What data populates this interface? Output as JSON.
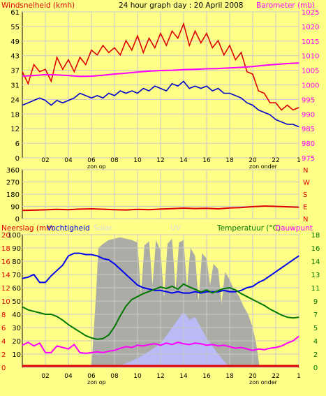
{
  "colors": {
    "background": "#ffff88",
    "panel_border": "#000000",
    "grid": "#c8c8c8",
    "wind": "#dd0000",
    "gust": "#dd0000",
    "wind_avg": "#0000cc",
    "barometer": "#ff00ff",
    "direction": "#dd0000",
    "rain": "#dd0000",
    "humidity": "#0000ee",
    "solar": "#a8a8a8",
    "uv": "#bbbbff",
    "temperature": "#007700",
    "dewpoint": "#ff00ff",
    "label_left": "#dd0000",
    "label_right": "#ff00ff",
    "label_bottom_right": "#007700",
    "tick_text": "#000000"
  },
  "chart_data": [
    {
      "type": "line",
      "title": "24 hour graph day : 20 April 2008",
      "left_label": "Windsnelheid (kmh)",
      "right_label": "Barometer (mb)",
      "x_ticks": [
        "02",
        "04",
        "06",
        "08",
        "10",
        "12",
        "14",
        "16",
        "18",
        "20",
        "22",
        "1"
      ],
      "x_markers": [
        "zon op",
        "zon onder"
      ],
      "left_ticks": [
        "0",
        "6",
        "12",
        "18",
        "24",
        "31",
        "37",
        "43",
        "49",
        "55",
        "61"
      ],
      "right_ticks": [
        "975",
        "980",
        "985",
        "990",
        "995",
        "1000",
        "1005",
        "1010",
        "1015",
        "1020",
        "1025"
      ],
      "ylim_left": [
        0,
        61
      ],
      "ylim_right": [
        975,
        1025
      ],
      "series": [
        {
          "name": "gust",
          "axis": "left",
          "x": [
            0,
            0.5,
            1,
            1.5,
            2,
            2.5,
            3,
            3.5,
            4,
            4.5,
            5,
            5.5,
            6,
            6.5,
            7,
            7.5,
            8,
            8.5,
            9,
            9.5,
            10,
            10.5,
            11,
            11.5,
            12,
            12.5,
            13,
            13.5,
            14,
            14.5,
            15,
            15.5,
            16,
            16.5,
            17,
            17.5,
            18,
            18.5,
            19,
            19.5,
            20,
            20.5,
            21,
            21.5,
            22,
            22.5,
            23,
            23.5,
            24
          ],
          "values": [
            36,
            31,
            39,
            36,
            37,
            32,
            42,
            37,
            41,
            36,
            42,
            39,
            45,
            43,
            47,
            44,
            46,
            43,
            49,
            45,
            51,
            44,
            50,
            46,
            52,
            47,
            53,
            50,
            56,
            47,
            53,
            48,
            52,
            46,
            49,
            43,
            47,
            41,
            44,
            36,
            35,
            28,
            27,
            23,
            23,
            20,
            22,
            20,
            21
          ]
        },
        {
          "name": "wind_avg",
          "axis": "left",
          "x": [
            0,
            0.5,
            1,
            1.5,
            2,
            2.5,
            3,
            3.5,
            4,
            4.5,
            5,
            5.5,
            6,
            6.5,
            7,
            7.5,
            8,
            8.5,
            9,
            9.5,
            10,
            10.5,
            11,
            11.5,
            12,
            12.5,
            13,
            13.5,
            14,
            14.5,
            15,
            15.5,
            16,
            16.5,
            17,
            17.5,
            18,
            18.5,
            19,
            19.5,
            20,
            20.5,
            21,
            21.5,
            22,
            22.5,
            23,
            23.5,
            24
          ],
          "values": [
            22,
            23,
            24,
            25,
            24,
            22,
            24,
            23,
            24,
            25,
            27,
            26,
            25,
            26,
            25,
            27,
            26,
            28,
            27,
            28,
            27,
            29,
            28,
            30,
            29,
            28,
            31,
            30,
            32,
            29,
            30,
            29,
            30,
            28,
            29,
            27,
            27,
            26,
            25,
            23,
            22,
            20,
            19,
            18,
            16,
            15,
            14,
            14,
            13
          ]
        },
        {
          "name": "barometer",
          "axis": "right",
          "x": [
            0,
            1,
            2,
            3,
            4,
            5,
            6,
            7,
            8,
            9,
            10,
            11,
            12,
            13,
            14,
            15,
            16,
            17,
            18,
            19,
            20,
            21,
            22,
            23,
            24
          ],
          "values": [
            1003,
            1003.2,
            1003.5,
            1003.4,
            1003.2,
            1002.9,
            1003,
            1003.3,
            1003.7,
            1004,
            1004.4,
            1004.7,
            1004.9,
            1005,
            1005.2,
            1005.3,
            1005.5,
            1005.6,
            1005.8,
            1006,
            1006.3,
            1006.7,
            1007,
            1007.3,
            1007.5
          ]
        }
      ]
    },
    {
      "type": "line",
      "title": "",
      "left_ticks": [
        "0",
        "90",
        "180",
        "270",
        "360"
      ],
      "right_ticks": [
        "N",
        "E",
        "S",
        "W",
        "N"
      ],
      "ylim": [
        0,
        360
      ],
      "series": [
        {
          "name": "direction",
          "x": [
            0,
            1,
            2,
            3,
            4,
            5,
            6,
            7,
            8,
            9,
            10,
            11,
            12,
            13,
            14,
            15,
            16,
            17,
            18,
            19,
            20,
            21,
            22,
            23,
            24
          ],
          "values": [
            60,
            62,
            65,
            68,
            66,
            70,
            72,
            69,
            66,
            64,
            68,
            66,
            70,
            73,
            77,
            74,
            76,
            72,
            78,
            82,
            88,
            92,
            90,
            87,
            84
          ]
        }
      ]
    },
    {
      "type": "area",
      "left_label_rain": "Neerslag (mm",
      "left_label_humidity": "Vochtigheid",
      "center_label_solar": "Solar",
      "center_label_uv": "UV",
      "right_label_temperature": "Temperatuur (°C)",
      "right_label_dewpoint": "Dauwpunt",
      "x_ticks": [
        "02",
        "04",
        "06",
        "08",
        "10",
        "12",
        "14",
        "16",
        "18",
        "20",
        "22",
        "1"
      ],
      "x_markers": [
        "zon op",
        "zon onder"
      ],
      "rain_ticks": [
        "0",
        "2",
        "4",
        "6",
        "8",
        "10",
        "12",
        "14",
        "16",
        "18",
        "20"
      ],
      "humidity_ticks": [
        "10",
        "20",
        "30",
        "40",
        "50",
        "60",
        "70",
        "80",
        "90",
        "100"
      ],
      "temperature_ticks": [
        "0",
        "2",
        "4",
        "5",
        "7",
        "9",
        "11",
        "13",
        "14",
        "16",
        "18"
      ],
      "ylim_rain": [
        0,
        20
      ],
      "ylim_humidity": [
        0,
        100
      ],
      "ylim_temperature": [
        0,
        18
      ],
      "series": [
        {
          "name": "humidity",
          "axis": "humidity",
          "x": [
            0,
            0.5,
            1,
            1.5,
            2,
            2.5,
            3,
            3.5,
            4,
            4.5,
            5,
            5.5,
            6,
            6.5,
            7,
            7.5,
            8,
            8.5,
            9,
            9.5,
            10,
            10.5,
            11,
            11.5,
            12,
            12.5,
            13,
            13.5,
            14,
            14.5,
            15,
            15.5,
            16,
            16.5,
            17,
            17.5,
            18,
            18.5,
            19,
            19.5,
            20,
            20.5,
            21,
            21.5,
            22,
            22.5,
            23,
            23.5,
            24
          ],
          "values": [
            67,
            68,
            70,
            64,
            64,
            69,
            73,
            77,
            84,
            86,
            86,
            85,
            85,
            84,
            82,
            81,
            78,
            74,
            70,
            66,
            62,
            60,
            59,
            58,
            58,
            57,
            56,
            57,
            56,
            56,
            57,
            56,
            57,
            57,
            57,
            58,
            57,
            57,
            58,
            60,
            61,
            64,
            66,
            69,
            72,
            75,
            78,
            81,
            84
          ]
        },
        {
          "name": "temperature",
          "axis": "temperature",
          "x": [
            0,
            0.5,
            1,
            1.5,
            2,
            2.5,
            3,
            3.5,
            4,
            4.5,
            5,
            5.5,
            6,
            6.5,
            7,
            7.5,
            8,
            8.5,
            9,
            9.5,
            10,
            10.5,
            11,
            11.5,
            12,
            12.5,
            13,
            13.5,
            14,
            14.5,
            15,
            15.5,
            16,
            16.5,
            17,
            17.5,
            18,
            18.5,
            19,
            19.5,
            20,
            20.5,
            21,
            21.5,
            22,
            22.5,
            23,
            23.5,
            24
          ],
          "values": [
            8.2,
            7.8,
            7.6,
            7.4,
            7.2,
            7.2,
            6.9,
            6.4,
            5.8,
            5.3,
            4.8,
            4.3,
            4.0,
            3.8,
            3.9,
            4.4,
            5.5,
            7.0,
            8.3,
            9.2,
            9.6,
            10.0,
            10.3,
            10.6,
            10.9,
            10.7,
            11.0,
            10.6,
            11.3,
            10.9,
            10.6,
            10.2,
            10.5,
            10.1,
            10.4,
            10.7,
            10.8,
            10.5,
            10.0,
            9.6,
            9.2,
            8.8,
            8.4,
            7.9,
            7.5,
            7.1,
            6.8,
            6.7,
            6.8
          ]
        },
        {
          "name": "dewpoint",
          "axis": "temperature",
          "x": [
            0,
            0.5,
            1,
            1.5,
            2,
            2.5,
            3,
            3.5,
            4,
            4.5,
            5,
            5.5,
            6,
            6.5,
            7,
            7.5,
            8,
            8.5,
            9,
            9.5,
            10,
            10.5,
            11,
            11.5,
            12,
            12.5,
            13,
            13.5,
            14,
            14.5,
            15,
            15.5,
            16,
            16.5,
            17,
            17.5,
            18,
            18.5,
            19,
            19.5,
            20,
            20.5,
            21,
            21.5,
            22,
            22.5,
            23,
            23.5,
            24
          ],
          "values": [
            3.0,
            3.4,
            2.9,
            3.3,
            2.0,
            2.0,
            2.9,
            2.7,
            2.5,
            3.1,
            2.0,
            1.9,
            2.0,
            2.1,
            2.0,
            2.2,
            2.3,
            2.6,
            2.8,
            2.7,
            3.0,
            2.9,
            3.1,
            3.2,
            3.0,
            3.3,
            3.1,
            3.4,
            3.2,
            3.1,
            3.3,
            3.2,
            3.0,
            3.1,
            2.9,
            3.0,
            2.8,
            2.6,
            2.7,
            2.5,
            2.3,
            2.5,
            2.4,
            2.6,
            2.7,
            2.9,
            3.3,
            3.6,
            4.2
          ]
        },
        {
          "name": "solar",
          "axis": "percent",
          "x": [
            6,
            6.4,
            6.6,
            7,
            7.5,
            8,
            8.5,
            9,
            9.5,
            10,
            10.3,
            10.6,
            11,
            11.3,
            11.6,
            12,
            12.3,
            12.6,
            13,
            13.3,
            13.6,
            14,
            14.3,
            14.6,
            15,
            15.3,
            15.6,
            16,
            16.3,
            16.6,
            17,
            17.3,
            17.6,
            18,
            18.4,
            18.8,
            19.2,
            19.6,
            20,
            20.3,
            20.6
          ],
          "values": [
            0,
            55,
            90,
            93,
            96,
            97,
            98,
            97,
            96,
            94,
            55,
            92,
            95,
            62,
            96,
            88,
            52,
            93,
            97,
            58,
            94,
            96,
            60,
            90,
            84,
            50,
            86,
            82,
            62,
            78,
            74,
            48,
            72,
            66,
            58,
            54,
            46,
            40,
            30,
            18,
            0
          ]
        },
        {
          "name": "uv",
          "axis": "percent",
          "x": [
            8,
            9,
            10,
            11,
            12,
            12.5,
            13,
            13.5,
            14,
            14.5,
            15,
            15.5,
            16,
            17,
            18
          ],
          "values": [
            0,
            3,
            7,
            12,
            18,
            24,
            30,
            36,
            42,
            36,
            38,
            30,
            22,
            10,
            0
          ]
        },
        {
          "name": "rain",
          "axis": "rain",
          "x": [
            0,
            24
          ],
          "values": [
            0,
            0
          ]
        }
      ]
    }
  ]
}
